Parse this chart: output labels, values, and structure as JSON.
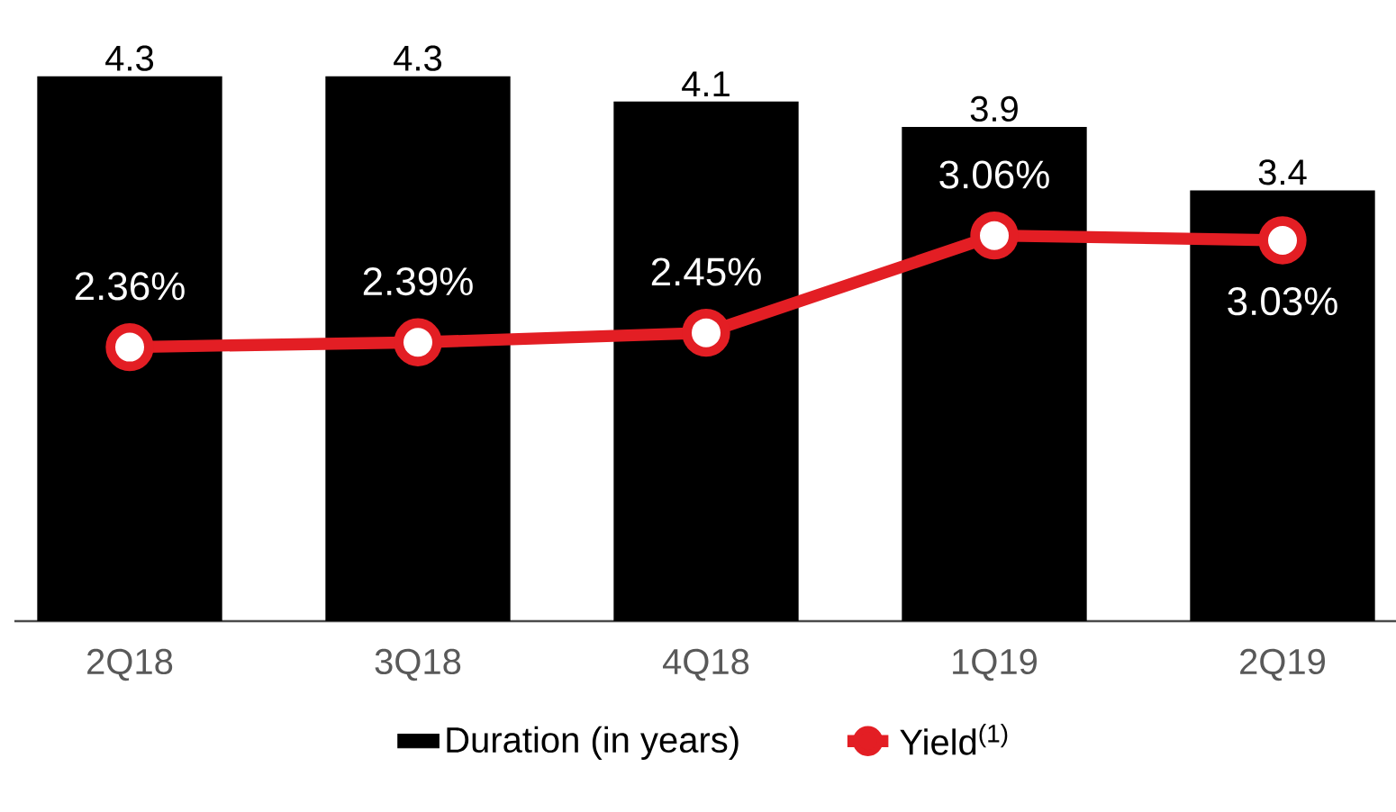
{
  "chart_data": {
    "type": "bar",
    "categories": [
      "2Q18",
      "3Q18",
      "4Q18",
      "1Q19",
      "2Q19"
    ],
    "series": [
      {
        "name": "Duration (in years)",
        "color": "#000000",
        "values": [
          4.3,
          4.3,
          4.1,
          3.9,
          3.4
        ],
        "value_labels": [
          "4.3",
          "4.3",
          "4.1",
          "3.9",
          "3.4"
        ]
      },
      {
        "name": "Yield$^{(1)}$",
        "type": "line",
        "axis": "y2",
        "color": "#e31e24",
        "marker": "circle",
        "values": [
          2.36,
          2.39,
          2.45,
          3.06,
          3.03
        ],
        "value_labels": [
          "2.36%",
          "2.39%",
          "2.45%",
          "3.06%",
          "3.03%"
        ]
      }
    ],
    "ylim": [
      0,
      4.3
    ],
    "y2lim": [
      0.64,
      4.06
    ],
    "tick_labels": "x",
    "legend": "bottom"
  }
}
